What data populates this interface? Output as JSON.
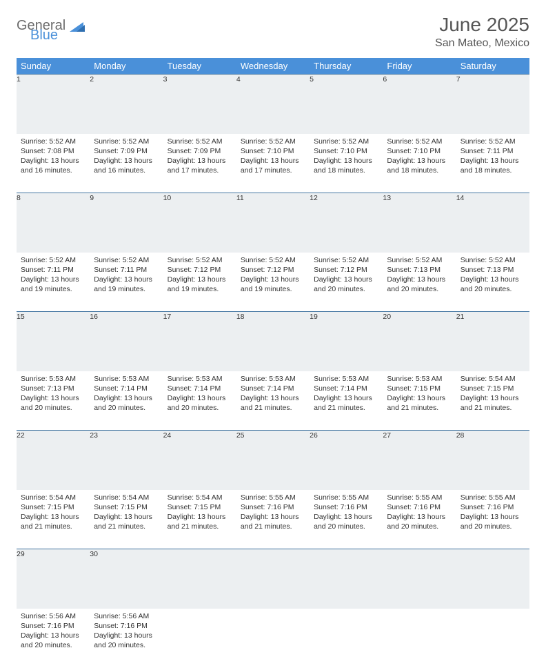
{
  "logo": {
    "text_general": "General",
    "text_blue": "Blue"
  },
  "header": {
    "title": "June 2025",
    "location": "San Mateo, Mexico"
  },
  "colors": {
    "header_bg": "#4a90d9",
    "header_text": "#ffffff",
    "daynum_bg": "#eceff1",
    "rule": "#4073a0",
    "body_text": "#333333",
    "title_text": "#555555"
  },
  "weekdays": [
    "Sunday",
    "Monday",
    "Tuesday",
    "Wednesday",
    "Thursday",
    "Friday",
    "Saturday"
  ],
  "days": [
    {
      "n": 1,
      "sunrise": "5:52 AM",
      "sunset": "7:08 PM",
      "daylight": "13 hours and 16 minutes."
    },
    {
      "n": 2,
      "sunrise": "5:52 AM",
      "sunset": "7:09 PM",
      "daylight": "13 hours and 16 minutes."
    },
    {
      "n": 3,
      "sunrise": "5:52 AM",
      "sunset": "7:09 PM",
      "daylight": "13 hours and 17 minutes."
    },
    {
      "n": 4,
      "sunrise": "5:52 AM",
      "sunset": "7:10 PM",
      "daylight": "13 hours and 17 minutes."
    },
    {
      "n": 5,
      "sunrise": "5:52 AM",
      "sunset": "7:10 PM",
      "daylight": "13 hours and 18 minutes."
    },
    {
      "n": 6,
      "sunrise": "5:52 AM",
      "sunset": "7:10 PM",
      "daylight": "13 hours and 18 minutes."
    },
    {
      "n": 7,
      "sunrise": "5:52 AM",
      "sunset": "7:11 PM",
      "daylight": "13 hours and 18 minutes."
    },
    {
      "n": 8,
      "sunrise": "5:52 AM",
      "sunset": "7:11 PM",
      "daylight": "13 hours and 19 minutes."
    },
    {
      "n": 9,
      "sunrise": "5:52 AM",
      "sunset": "7:11 PM",
      "daylight": "13 hours and 19 minutes."
    },
    {
      "n": 10,
      "sunrise": "5:52 AM",
      "sunset": "7:12 PM",
      "daylight": "13 hours and 19 minutes."
    },
    {
      "n": 11,
      "sunrise": "5:52 AM",
      "sunset": "7:12 PM",
      "daylight": "13 hours and 19 minutes."
    },
    {
      "n": 12,
      "sunrise": "5:52 AM",
      "sunset": "7:12 PM",
      "daylight": "13 hours and 20 minutes."
    },
    {
      "n": 13,
      "sunrise": "5:52 AM",
      "sunset": "7:13 PM",
      "daylight": "13 hours and 20 minutes."
    },
    {
      "n": 14,
      "sunrise": "5:52 AM",
      "sunset": "7:13 PM",
      "daylight": "13 hours and 20 minutes."
    },
    {
      "n": 15,
      "sunrise": "5:53 AM",
      "sunset": "7:13 PM",
      "daylight": "13 hours and 20 minutes."
    },
    {
      "n": 16,
      "sunrise": "5:53 AM",
      "sunset": "7:14 PM",
      "daylight": "13 hours and 20 minutes."
    },
    {
      "n": 17,
      "sunrise": "5:53 AM",
      "sunset": "7:14 PM",
      "daylight": "13 hours and 20 minutes."
    },
    {
      "n": 18,
      "sunrise": "5:53 AM",
      "sunset": "7:14 PM",
      "daylight": "13 hours and 21 minutes."
    },
    {
      "n": 19,
      "sunrise": "5:53 AM",
      "sunset": "7:14 PM",
      "daylight": "13 hours and 21 minutes."
    },
    {
      "n": 20,
      "sunrise": "5:53 AM",
      "sunset": "7:15 PM",
      "daylight": "13 hours and 21 minutes."
    },
    {
      "n": 21,
      "sunrise": "5:54 AM",
      "sunset": "7:15 PM",
      "daylight": "13 hours and 21 minutes."
    },
    {
      "n": 22,
      "sunrise": "5:54 AM",
      "sunset": "7:15 PM",
      "daylight": "13 hours and 21 minutes."
    },
    {
      "n": 23,
      "sunrise": "5:54 AM",
      "sunset": "7:15 PM",
      "daylight": "13 hours and 21 minutes."
    },
    {
      "n": 24,
      "sunrise": "5:54 AM",
      "sunset": "7:15 PM",
      "daylight": "13 hours and 21 minutes."
    },
    {
      "n": 25,
      "sunrise": "5:55 AM",
      "sunset": "7:16 PM",
      "daylight": "13 hours and 21 minutes."
    },
    {
      "n": 26,
      "sunrise": "5:55 AM",
      "sunset": "7:16 PM",
      "daylight": "13 hours and 20 minutes."
    },
    {
      "n": 27,
      "sunrise": "5:55 AM",
      "sunset": "7:16 PM",
      "daylight": "13 hours and 20 minutes."
    },
    {
      "n": 28,
      "sunrise": "5:55 AM",
      "sunset": "7:16 PM",
      "daylight": "13 hours and 20 minutes."
    },
    {
      "n": 29,
      "sunrise": "5:56 AM",
      "sunset": "7:16 PM",
      "daylight": "13 hours and 20 minutes."
    },
    {
      "n": 30,
      "sunrise": "5:56 AM",
      "sunset": "7:16 PM",
      "daylight": "13 hours and 20 minutes."
    }
  ],
  "labels": {
    "sunrise": "Sunrise:",
    "sunset": "Sunset:",
    "daylight": "Daylight:"
  }
}
